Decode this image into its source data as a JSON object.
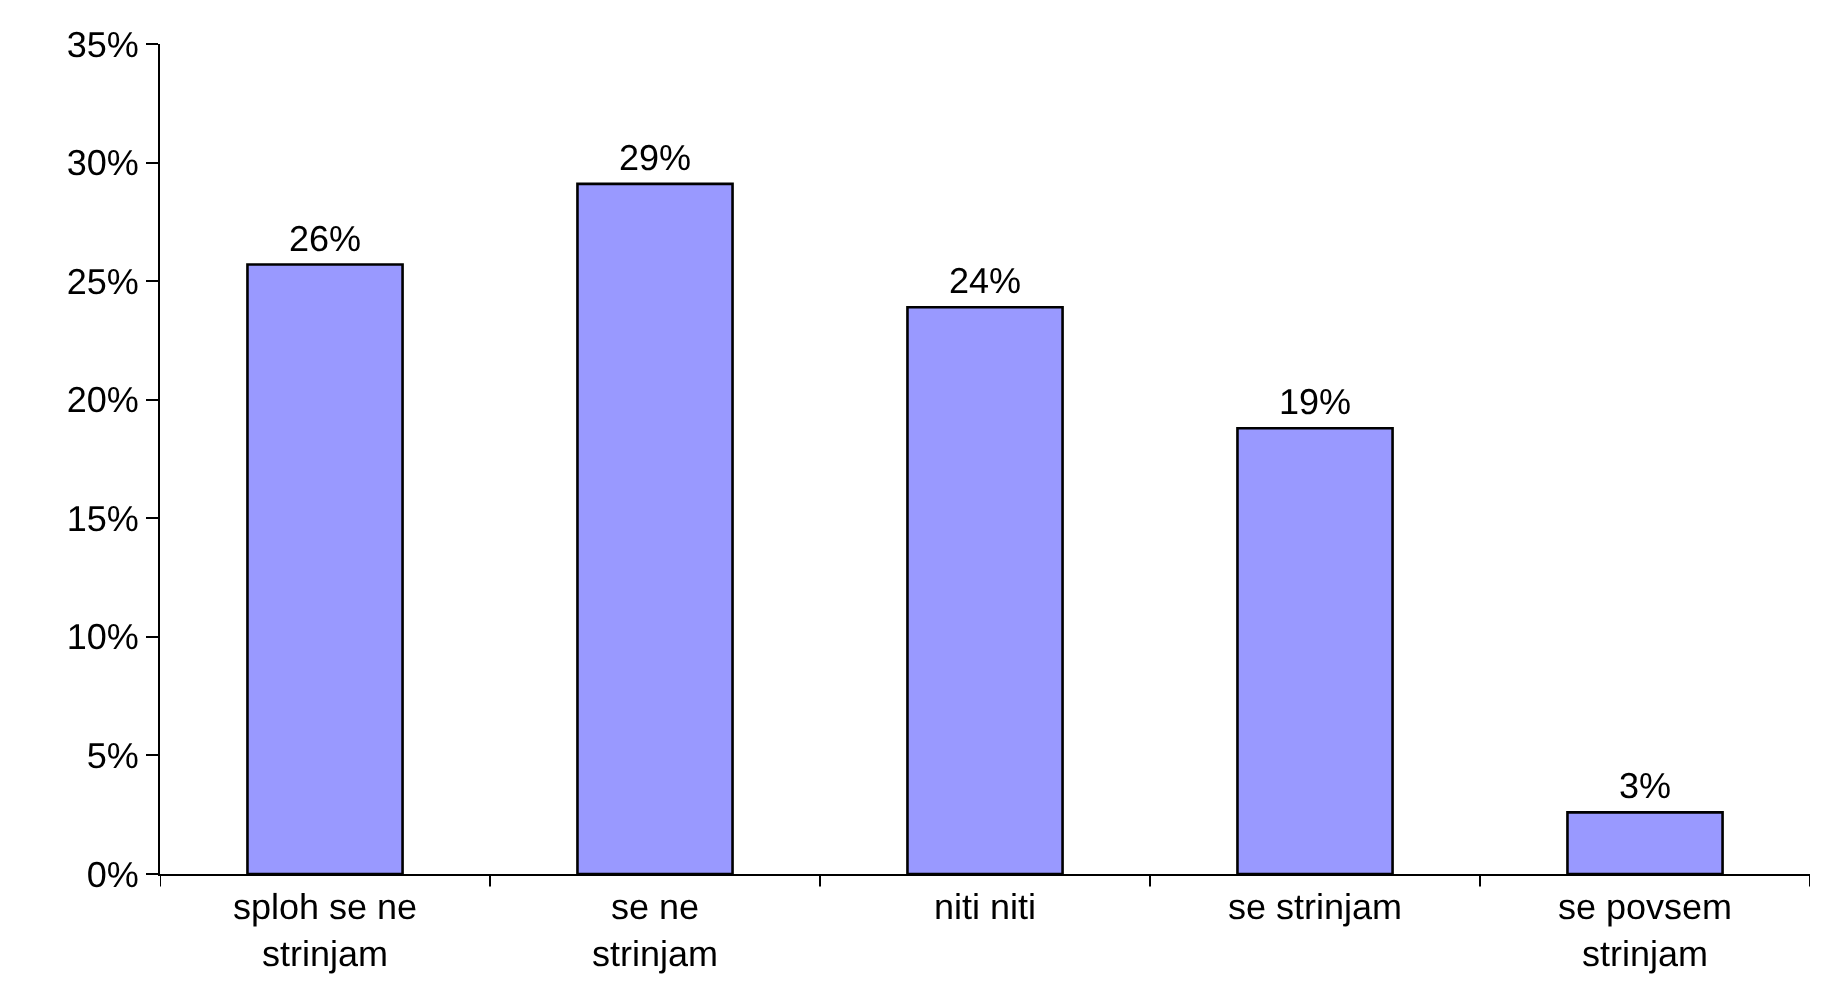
{
  "chart_data": {
    "type": "bar",
    "categories": [
      "sploh se ne strinjam",
      "se ne strinjam",
      "niti niti",
      "se strinjam",
      "se povsem strinjam"
    ],
    "values": [
      25.7,
      29.1,
      23.9,
      18.8,
      2.6
    ],
    "value_labels": [
      "26%",
      "29%",
      "24%",
      "19%",
      "3%"
    ],
    "color": "#9999ff",
    "ylim": [
      0,
      35
    ],
    "yticks": [
      {
        "value": 0,
        "label": "0%"
      },
      {
        "value": 5,
        "label": "5%"
      },
      {
        "value": 10,
        "label": "10%"
      },
      {
        "value": 15,
        "label": "15%"
      },
      {
        "value": 20,
        "label": "20%"
      },
      {
        "value": 25,
        "label": "25%"
      },
      {
        "value": 30,
        "label": "30%"
      },
      {
        "value": 35,
        "label": "35%"
      }
    ],
    "grid": false,
    "legend": false
  }
}
